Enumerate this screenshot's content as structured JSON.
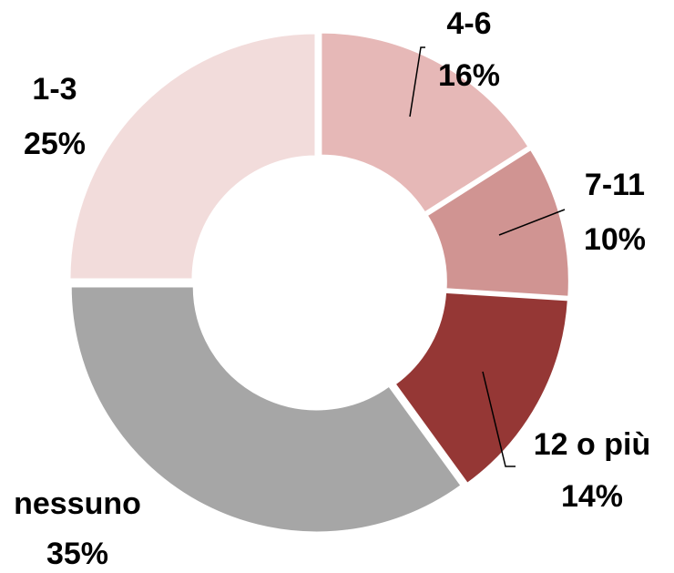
{
  "chart_data": {
    "type": "donut",
    "categories": [
      "4-6",
      "7-11",
      "12 o più",
      "nessuno",
      "1-3"
    ],
    "values": [
      16,
      10,
      14,
      35,
      25
    ],
    "value_labels": [
      "16%",
      "10%",
      "14%",
      "35%",
      "25%"
    ],
    "colors": [
      "#e6b8b7",
      "#d09492",
      "#953735",
      "#a6a6a6",
      "#f2dcdb"
    ]
  }
}
